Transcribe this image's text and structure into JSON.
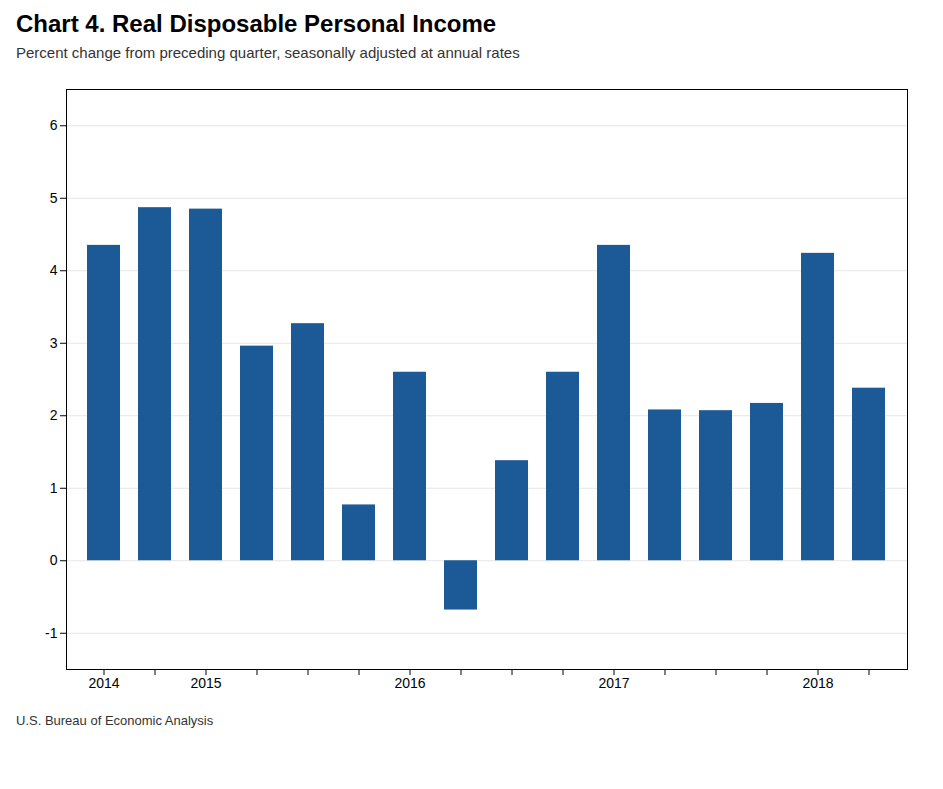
{
  "chart_data": {
    "type": "bar",
    "title": "Chart 4. Real Disposable Personal Income",
    "subtitle": "Percent change from preceding quarter, seasonally adjusted at annual rates",
    "source": "U.S. Bureau of Economic Analysis",
    "categories": [
      "2014",
      null,
      "2015",
      null,
      null,
      null,
      "2016",
      null,
      null,
      null,
      "2017",
      null,
      null,
      null,
      "2018",
      null
    ],
    "values": [
      4.35,
      4.87,
      4.85,
      2.96,
      3.27,
      0.77,
      2.6,
      -0.68,
      1.38,
      2.6,
      4.35,
      2.08,
      2.07,
      2.17,
      4.24,
      2.38
    ],
    "color": "#1B5A96",
    "ylim": [
      -1.5,
      6.5
    ],
    "yticks": [
      -1,
      0,
      1,
      2,
      3,
      4,
      5,
      6
    ],
    "grid": true
  }
}
